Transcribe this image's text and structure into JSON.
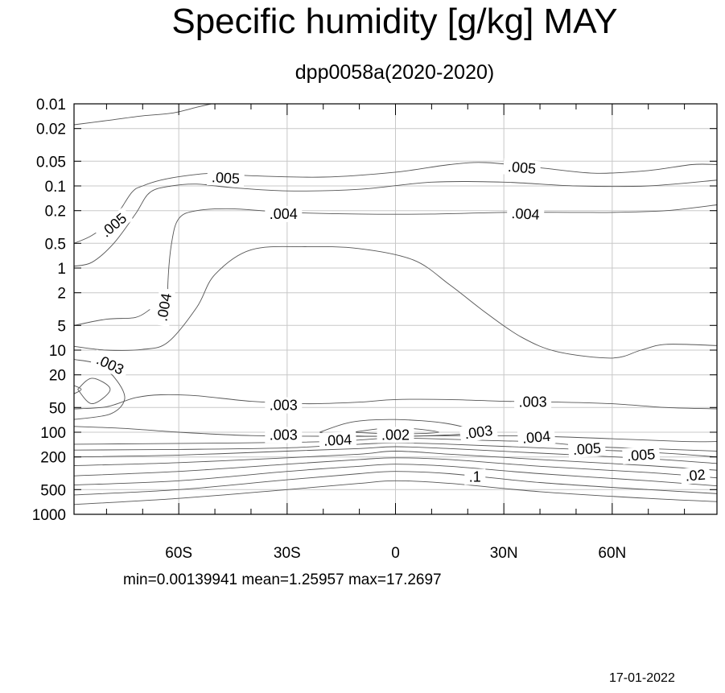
{
  "chart_data": {
    "type": "contour",
    "title": "Specific humidity [g/kg] MAY",
    "subtitle": "dpp0058a(2020-2020)",
    "x_ticks": [
      {
        "value": -60,
        "label": "60S"
      },
      {
        "value": -30,
        "label": "30S"
      },
      {
        "value": 0,
        "label": "0"
      },
      {
        "value": 30,
        "label": "30N"
      },
      {
        "value": 60,
        "label": "60N"
      }
    ],
    "xlim": [
      -89,
      89
    ],
    "y_scale": "log",
    "y_reversed": true,
    "ylim": [
      0.01,
      1000
    ],
    "y_ticks": [
      {
        "value": 0.01,
        "label": "0.01"
      },
      {
        "value": 0.02,
        "label": "0.02"
      },
      {
        "value": 0.05,
        "label": "0.05"
      },
      {
        "value": 0.1,
        "label": "0.1"
      },
      {
        "value": 0.2,
        "label": "0.2"
      },
      {
        "value": 0.5,
        "label": "0.5"
      },
      {
        "value": 1,
        "label": "1"
      },
      {
        "value": 2,
        "label": "2"
      },
      {
        "value": 5,
        "label": "5"
      },
      {
        "value": 10,
        "label": "10"
      },
      {
        "value": 20,
        "label": "20"
      },
      {
        "value": 50,
        "label": "50"
      },
      {
        "value": 100,
        "label": "100"
      },
      {
        "value": 200,
        "label": "200"
      },
      {
        "value": 500,
        "label": "500"
      },
      {
        "value": 1000,
        "label": "1000"
      }
    ],
    "grid": true,
    "contour_labels": [
      {
        "text": ".005",
        "lat": -78,
        "p": 0.3,
        "angle": -40
      },
      {
        "text": ".005",
        "lat": -47,
        "p": 0.08,
        "angle": 3
      },
      {
        "text": ".005",
        "lat": 35,
        "p": 0.06,
        "angle": 5
      },
      {
        "text": ".004",
        "lat": -31,
        "p": 0.22,
        "angle": 0
      },
      {
        "text": ".004",
        "lat": 36,
        "p": 0.22,
        "angle": 3
      },
      {
        "text": ".004",
        "lat": -64,
        "p": 3,
        "angle": -80
      },
      {
        "text": ".003",
        "lat": -79,
        "p": 15,
        "angle": 25
      },
      {
        "text": ".003",
        "lat": -31,
        "p": 47,
        "angle": 0
      },
      {
        "text": ".003",
        "lat": 38,
        "p": 43,
        "angle": 0
      },
      {
        "text": ".003",
        "lat": -31,
        "p": 108,
        "angle": 0
      },
      {
        "text": ".004",
        "lat": -16,
        "p": 125,
        "angle": -3
      },
      {
        "text": ".002",
        "lat": 0,
        "p": 108,
        "angle": 0
      },
      {
        "text": ".003",
        "lat": 23,
        "p": 100,
        "angle": -8
      },
      {
        "text": ".004",
        "lat": 39,
        "p": 115,
        "angle": -5
      },
      {
        "text": ".005",
        "lat": 53,
        "p": 160,
        "angle": -4
      },
      {
        "text": ".005",
        "lat": 68,
        "p": 190,
        "angle": -4
      },
      {
        "text": ".1",
        "lat": 22,
        "p": 350,
        "angle": 0
      },
      {
        "text": ".02",
        "lat": 83,
        "p": 335,
        "angle": -5
      }
    ],
    "stats": {
      "min": "0.00139941",
      "mean": "1.25957",
      "max": "17.2697"
    }
  },
  "footer": {
    "stats_text": "min=0.00139941   mean=1.25957   max=17.2697",
    "date": "17-01-2022"
  }
}
